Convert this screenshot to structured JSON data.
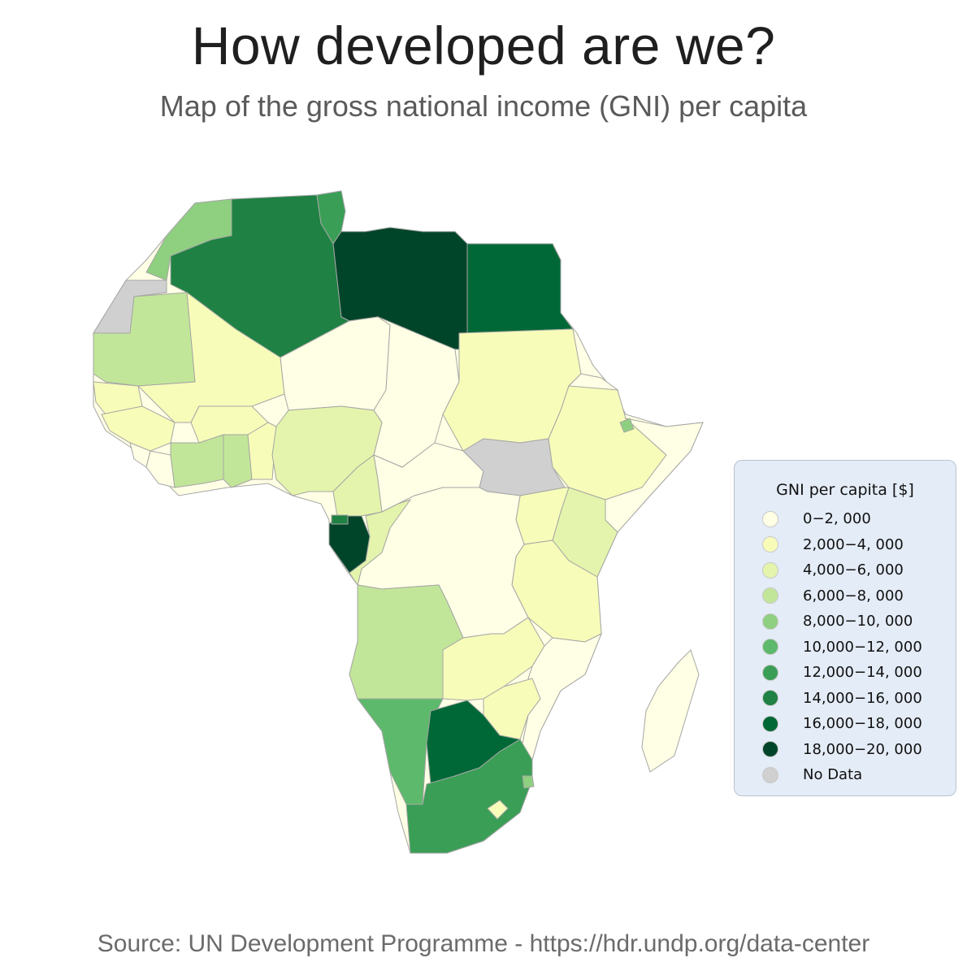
{
  "header": {
    "title": "How developed are we?",
    "subtitle": "Map of the gross national income (GNI) per capita"
  },
  "legend": {
    "title": "GNI per capita [$]",
    "items": [
      {
        "label": "0−2, 000",
        "color": "#ffffe5"
      },
      {
        "label": "2,000−4, 000",
        "color": "#f7fcb9"
      },
      {
        "label": "4,000−6, 000",
        "color": "#e4f4ac"
      },
      {
        "label": "6,000−8, 000",
        "color": "#c2e699"
      },
      {
        "label": "8,000−10, 000",
        "color": "#8fcf80"
      },
      {
        "label": "10,000−12, 000",
        "color": "#5db96b"
      },
      {
        "label": "12,000−14, 000",
        "color": "#3a9e56"
      },
      {
        "label": "14,000−16, 000",
        "color": "#1f8143"
      },
      {
        "label": "16,000−18, 000",
        "color": "#006837"
      },
      {
        "label": "18,000−20, 000",
        "color": "#004529"
      },
      {
        "label": "No Data",
        "color": "#d0d0d0"
      }
    ]
  },
  "source": "Source: UN Development Programme - https://hdr.undp.org/data-center"
}
